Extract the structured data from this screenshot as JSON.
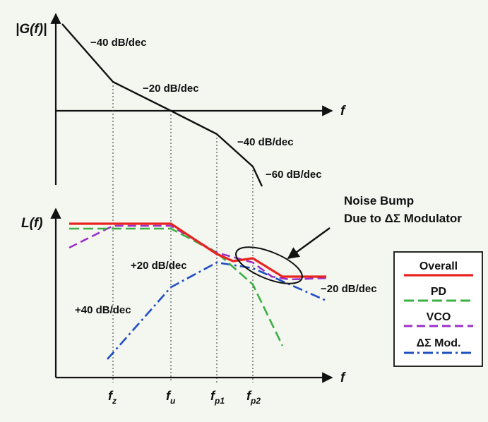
{
  "top_plot": {
    "y_label": "|G(f)|",
    "x_label": "f",
    "slope_labels": [
      "−40 dB/dec",
      "−20 dB/dec",
      "−40 dB/dec",
      "−60 dB/dec"
    ]
  },
  "bottom_plot": {
    "y_label": "L(f)",
    "x_label": "f",
    "slope_plus20": "+20 dB/dec",
    "slope_plus40": "+40 dB/dec",
    "slope_minus20": "−20 dB/dec",
    "annotation_line1": "Noise Bump",
    "annotation_line2": "Due to ΔΣ Modulator"
  },
  "frequency_ticks": [
    {
      "base": "f",
      "sub": "z"
    },
    {
      "base": "f",
      "sub": "u"
    },
    {
      "base": "f",
      "sub": "p1"
    },
    {
      "base": "f",
      "sub": "p2"
    }
  ],
  "legend": {
    "entries": [
      {
        "label": "Overall",
        "color": "#e8231e",
        "style": "solid"
      },
      {
        "label": "PD",
        "color": "#3cb043",
        "style": "dash"
      },
      {
        "label": "VCO",
        "color": "#9b30c8",
        "style": "dash"
      },
      {
        "label": "ΔΣ Mod.",
        "color": "#1f4fc4",
        "style": "dashdot"
      }
    ]
  }
}
